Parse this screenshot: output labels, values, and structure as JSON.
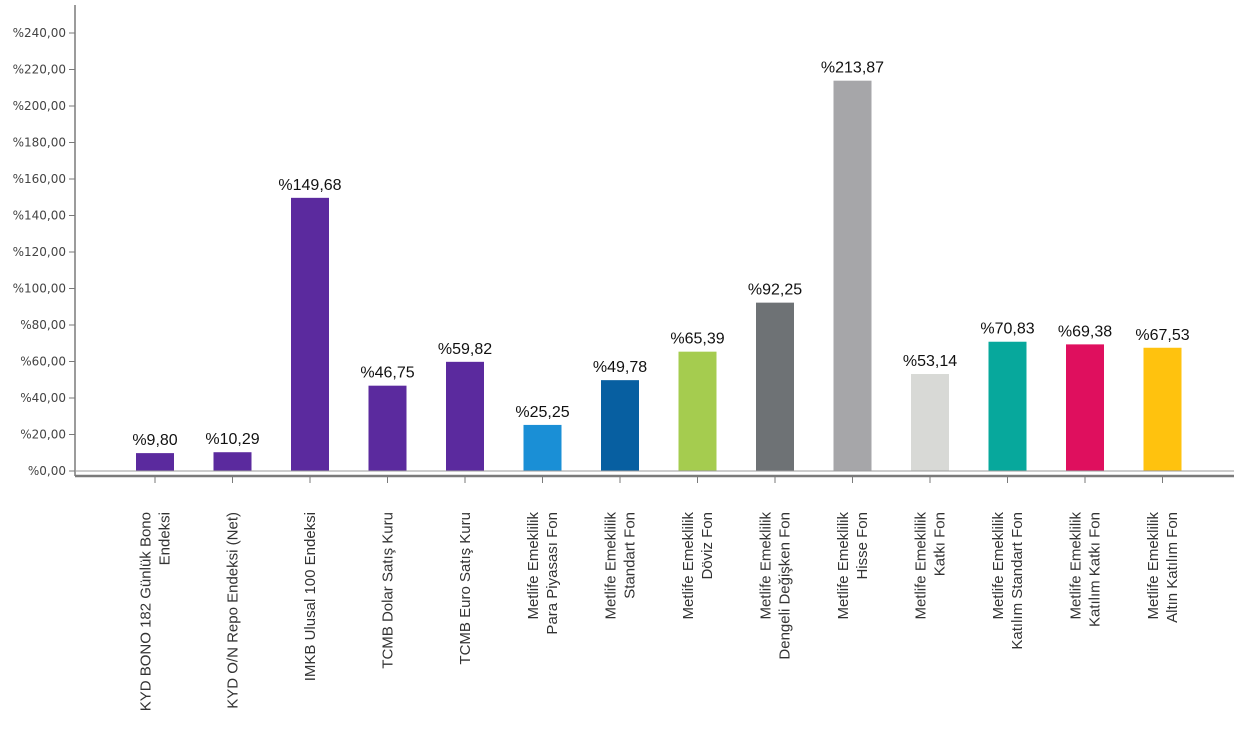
{
  "chart_data": {
    "type": "bar",
    "title": "",
    "xlabel": "",
    "ylabel": "",
    "ylim": [
      0,
      240
    ],
    "yticks": [
      0,
      20,
      40,
      60,
      80,
      100,
      120,
      140,
      160,
      180,
      200,
      220,
      240
    ],
    "ytick_labels": [
      "%0,00",
      "%20,00",
      "%40,00",
      "%60,00",
      "%80,00",
      "%100,00",
      "%120,00",
      "%140,00",
      "%160,00",
      "%180,00",
      "%200,00",
      "%220,00",
      "%240,00"
    ],
    "grid": false,
    "legend": "none",
    "categories": [
      [
        "KYD BONO 182 Günlük Bono",
        "Endeksi"
      ],
      [
        "KYD O/N Repo Endeksi (Net)"
      ],
      [
        "IMKB Ulusal 100 Endeksi"
      ],
      [
        "TCMB Dolar Satış Kuru"
      ],
      [
        "TCMB Euro Satış Kuru"
      ],
      [
        "Metlife Emeklilik",
        "Para Piyasası Fon"
      ],
      [
        "Metlife Emeklilik",
        "Standart Fon"
      ],
      [
        "Metlife Emeklilik",
        "Döviz Fon"
      ],
      [
        "Metlife Emeklilik",
        "Dengeli Değişken Fon"
      ],
      [
        "Metlife Emeklilik",
        "Hisse Fon"
      ],
      [
        "Metlife Emeklilik",
        "Katkı Fon"
      ],
      [
        "Metlife Emeklilik",
        "Katılım Standart Fon"
      ],
      [
        "Metlife Emeklilik",
        "Katılım Katkı Fon"
      ],
      [
        "Metlife Emeklilik",
        "Altın Katılım Fon"
      ]
    ],
    "values": [
      9.8,
      10.29,
      149.68,
      46.75,
      59.82,
      25.25,
      49.78,
      65.39,
      92.25,
      213.87,
      53.14,
      70.83,
      69.38,
      67.53
    ],
    "data_labels": [
      "%9,80",
      "%10,29",
      "%149,68",
      "%46,75",
      "%59,82",
      "%25,25",
      "%49,78",
      "%65,39",
      "%92,25",
      "%213,87",
      "%53,14",
      "%70,83",
      "%69,38",
      "%67,53"
    ],
    "colors": [
      "#5b2a9e",
      "#5b2a9e",
      "#5b2a9e",
      "#5b2a9e",
      "#5b2a9e",
      "#1a8fd6",
      "#075fa1",
      "#a5cc4f",
      "#6e7275",
      "#a6a6a9",
      "#d8d9d6",
      "#07a89c",
      "#df0f5e",
      "#ffc20e"
    ],
    "axis_color": "#7a7a7a"
  }
}
